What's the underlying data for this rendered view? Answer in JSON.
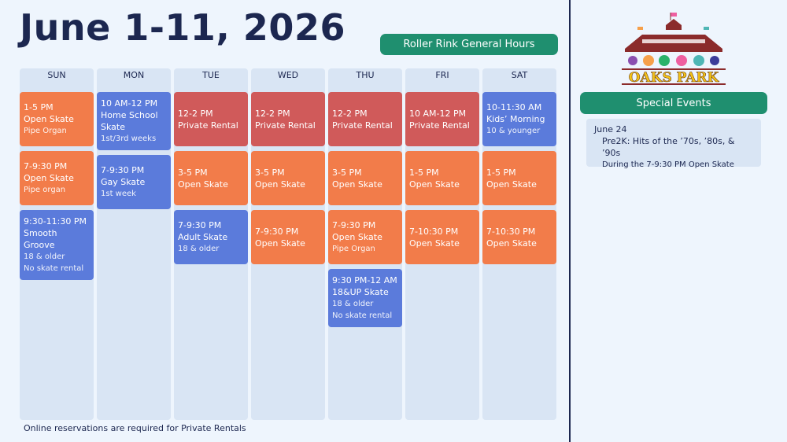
{
  "title": "June 1-11, 2026",
  "hours_label": "Roller Rink General Hours",
  "footer": "Online reservations are required for Private Rentals",
  "logo_text": "OAKS PARK",
  "special_events": {
    "label": "Special Events",
    "date": "June 24",
    "name": "Pre2K: Hits of the ’70s, ’80s, & ’90s",
    "detail": "During the 7-9:30 PM Open Skate"
  },
  "colors": {
    "open": "#f27c4a",
    "private": "#d05a5a",
    "special": "#5b7bdb",
    "accent": "#1f8f6f"
  },
  "days": [
    {
      "name": "SUN",
      "events": [
        {
          "time": "1-5 PM",
          "title": "Open Skate",
          "notes": [
            "Pipe Organ"
          ],
          "color": "orange"
        },
        {
          "time": "7-9:30 PM",
          "title": "Open Skate",
          "notes": [
            "Pipe organ"
          ],
          "color": "orange"
        },
        {
          "time": "9:30-11:30 PM",
          "title": "Smooth Groove",
          "notes": [
            "18 & older",
            "No skate rental"
          ],
          "color": "blue"
        }
      ]
    },
    {
      "name": "MON",
      "events": [
        {
          "time": "10 AM-12 PM",
          "title": "Home School Skate",
          "notes": [
            "1st/3rd weeks"
          ],
          "color": "blue"
        },
        {
          "time": "7-9:30 PM",
          "title": "Gay Skate",
          "notes": [
            "1st week"
          ],
          "color": "blue"
        }
      ]
    },
    {
      "name": "TUE",
      "events": [
        {
          "time": "12-2 PM",
          "title": "Private Rental",
          "notes": [],
          "color": "red"
        },
        {
          "time": "3-5 PM",
          "title": "Open Skate",
          "notes": [],
          "color": "orange"
        },
        {
          "time": "7-9:30 PM",
          "title": "Adult Skate",
          "notes": [
            "18 & older"
          ],
          "color": "blue"
        }
      ]
    },
    {
      "name": "WED",
      "events": [
        {
          "time": "12-2 PM",
          "title": "Private Rental",
          "notes": [],
          "color": "red"
        },
        {
          "time": "3-5 PM",
          "title": "Open Skate",
          "notes": [],
          "color": "orange"
        },
        {
          "time": "7-9:30 PM",
          "title": "Open Skate",
          "notes": [],
          "color": "orange"
        }
      ]
    },
    {
      "name": "THU",
      "events": [
        {
          "time": "12-2 PM",
          "title": "Private Rental",
          "notes": [],
          "color": "red"
        },
        {
          "time": "3-5 PM",
          "title": "Open Skate",
          "notes": [],
          "color": "orange"
        },
        {
          "time": "7-9:30 PM",
          "title": "Open Skate",
          "notes": [
            "Pipe Organ"
          ],
          "color": "orange"
        },
        {
          "time": "9:30 PM-12 AM",
          "title": "18&UP Skate",
          "notes": [
            "18 & older",
            "No skate rental"
          ],
          "color": "blue"
        }
      ]
    },
    {
      "name": "FRI",
      "events": [
        {
          "time": "10 AM-12 PM",
          "title": "Private Rental",
          "notes": [],
          "color": "red"
        },
        {
          "time": "1-5 PM",
          "title": "Open Skate",
          "notes": [],
          "color": "orange"
        },
        {
          "time": "7-10:30 PM",
          "title": "Open Skate",
          "notes": [],
          "color": "orange"
        }
      ]
    },
    {
      "name": "SAT",
      "events": [
        {
          "time": "10-11:30 AM",
          "title": "Kids’ Morning",
          "notes": [
            "10 & younger"
          ],
          "color": "blue"
        },
        {
          "time": "1-5 PM",
          "title": "Open Skate",
          "notes": [],
          "color": "orange"
        },
        {
          "time": "7-10:30 PM",
          "title": "Open Skate",
          "notes": [],
          "color": "orange"
        }
      ]
    }
  ]
}
